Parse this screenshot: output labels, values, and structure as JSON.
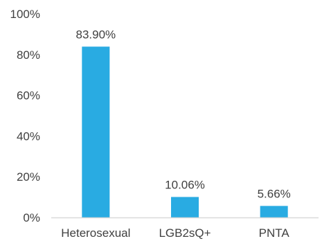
{
  "chart_data": {
    "type": "bar",
    "categories": [
      "Heterosexual",
      "LGB2sQ+",
      "PNTA"
    ],
    "values": [
      83.9,
      10.06,
      5.66
    ],
    "data_labels": [
      "83.90%",
      "10.06%",
      "5.66%"
    ],
    "y_ticks": [
      {
        "value": 0,
        "label": "0%"
      },
      {
        "value": 20,
        "label": "20%"
      },
      {
        "value": 40,
        "label": "40%"
      },
      {
        "value": 60,
        "label": "60%"
      },
      {
        "value": 80,
        "label": "80%"
      },
      {
        "value": 100,
        "label": "100%"
      }
    ],
    "ylim": [
      0,
      100
    ],
    "grid": false,
    "bar_color": "#29abe2",
    "axis_color": "#d9d9d9"
  }
}
